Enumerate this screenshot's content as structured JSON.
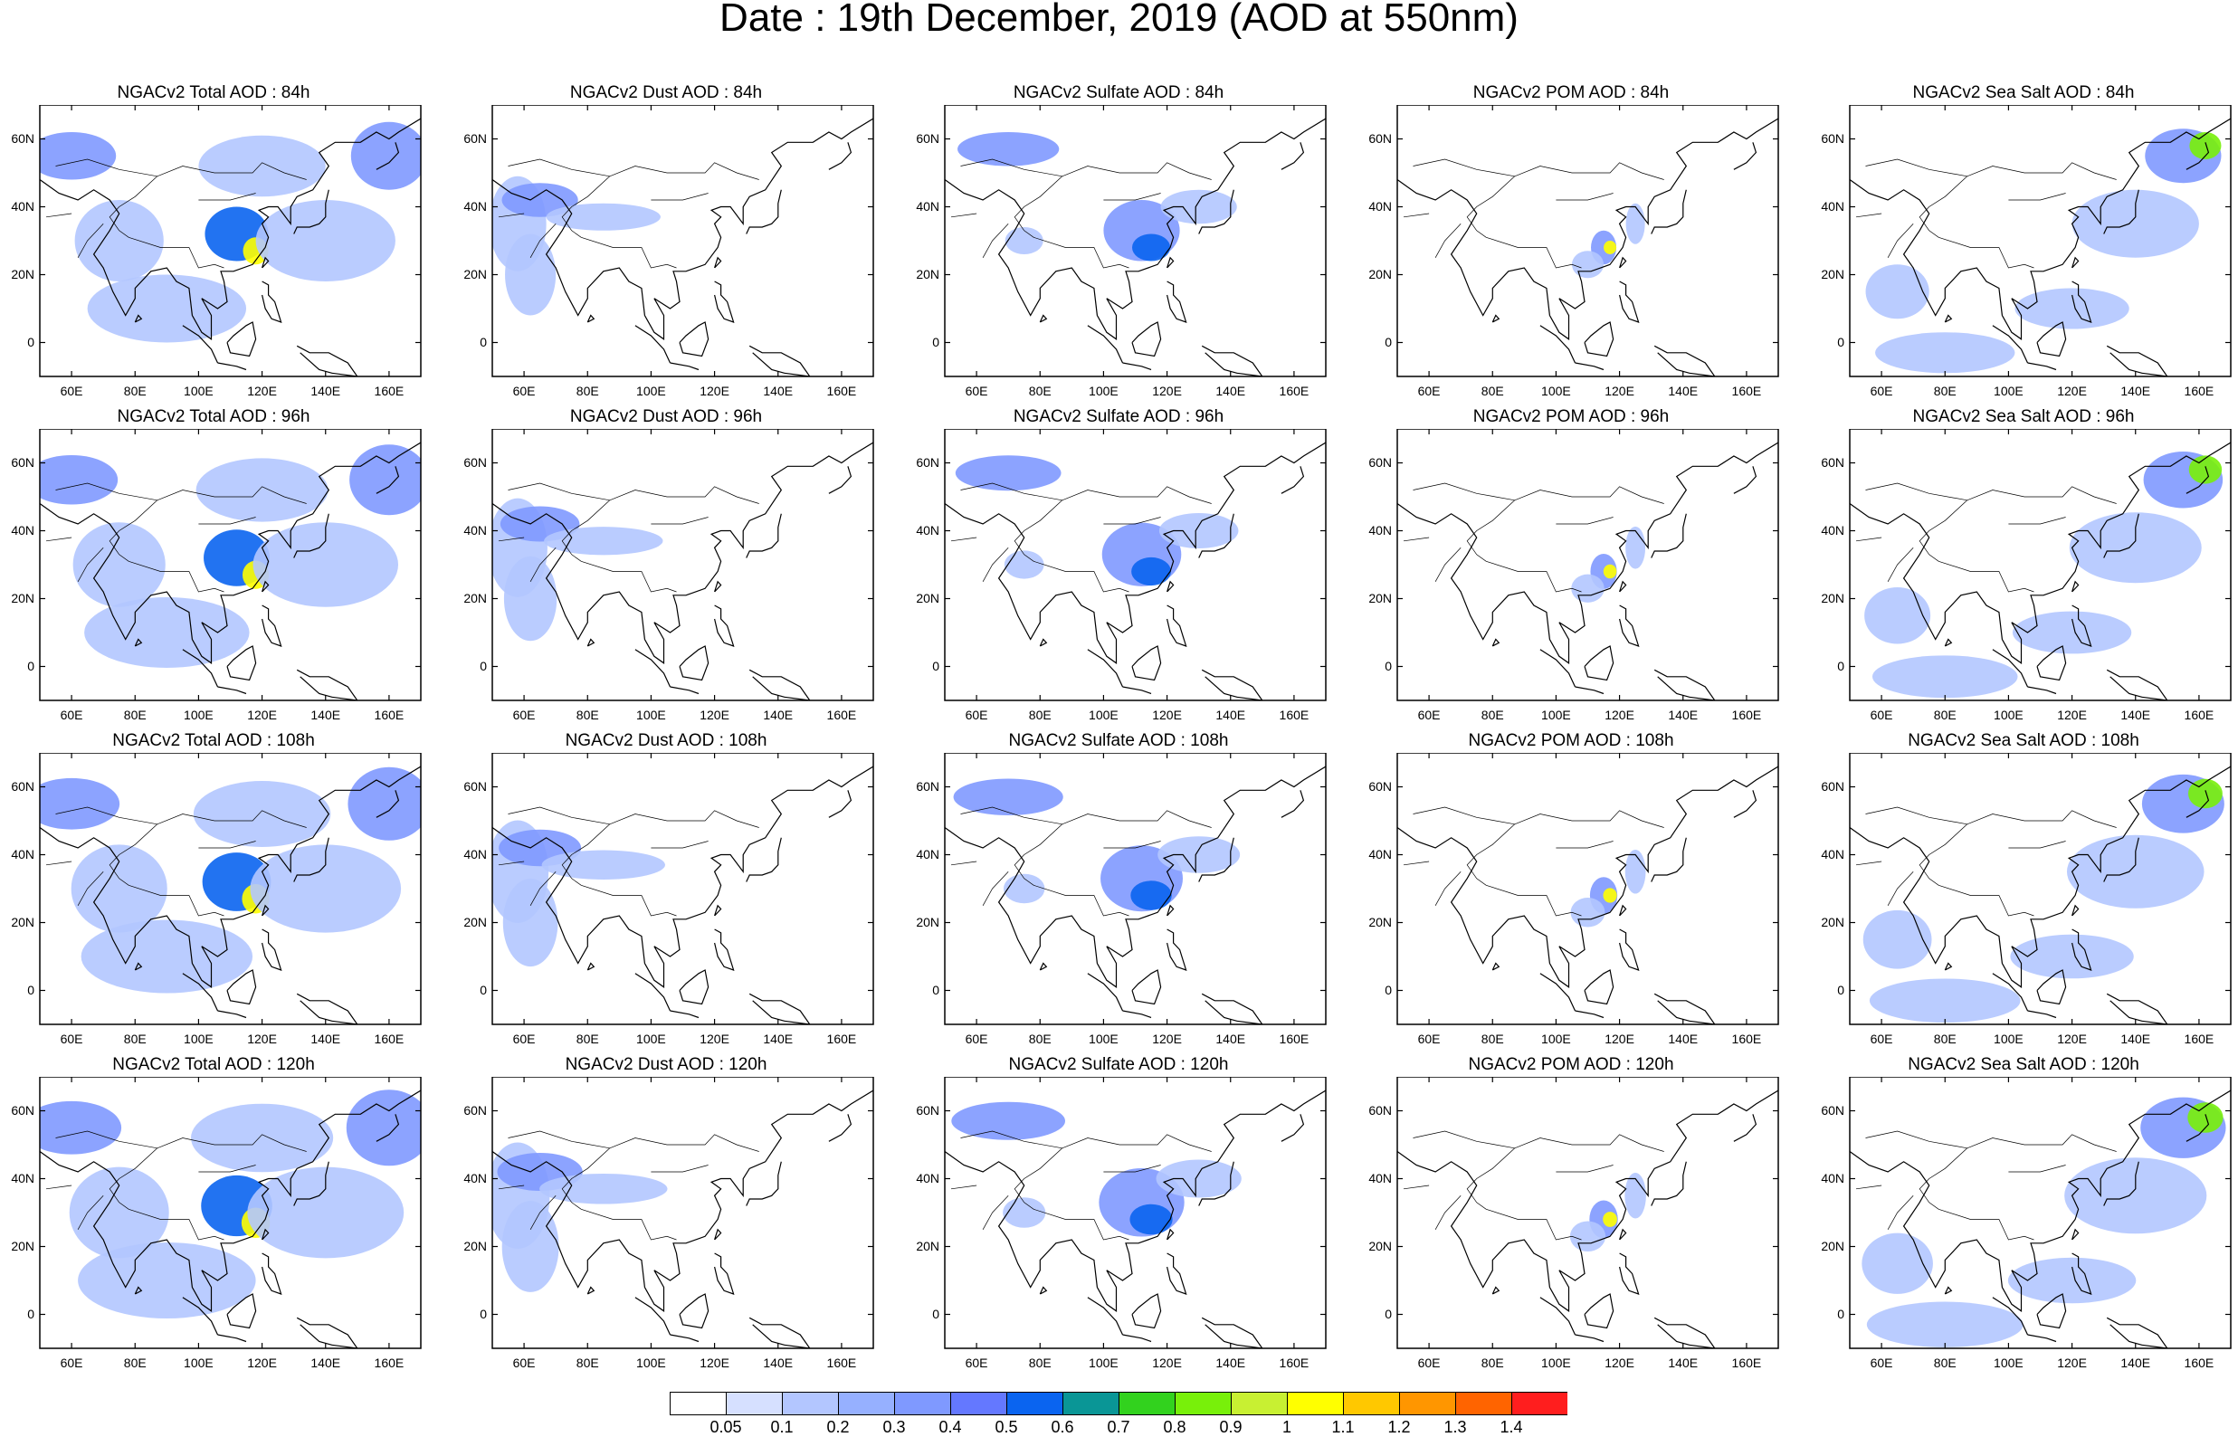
{
  "title": "Date : 19th December, 2019 (AOD at 550nm)",
  "axes": {
    "lat_ticks": [
      "60N",
      "40N",
      "20N",
      "0"
    ],
    "lat_values": [
      60,
      40,
      20,
      0
    ],
    "lon_ticks": [
      "60E",
      "80E",
      "100E",
      "120E",
      "140E",
      "160E"
    ],
    "lon_values": [
      60,
      80,
      100,
      120,
      140,
      160
    ],
    "lat_range": [
      -10,
      70
    ],
    "lon_range": [
      50,
      170
    ]
  },
  "panels": [
    [
      "NGACv2 Total AOD : 84h",
      "NGACv2 Dust AOD : 84h",
      "NGACv2 Sulfate AOD : 84h",
      "NGACv2 POM AOD : 84h",
      "NGACv2 Sea Salt AOD : 84h"
    ],
    [
      "NGACv2 Total AOD : 96h",
      "NGACv2 Dust AOD : 96h",
      "NGACv2 Sulfate AOD : 96h",
      "NGACv2 POM AOD : 96h",
      "NGACv2 Sea Salt AOD : 96h"
    ],
    [
      "NGACv2 Total AOD : 108h",
      "NGACv2 Dust AOD : 108h",
      "NGACv2 Sulfate AOD : 108h",
      "NGACv2 POM AOD : 108h",
      "NGACv2 Sea Salt AOD : 108h"
    ],
    [
      "NGACv2 Total AOD : 120h",
      "NGACv2 Dust AOD : 120h",
      "NGACv2 Sulfate AOD : 120h",
      "NGACv2 POM AOD : 120h",
      "NGACv2 Sea Salt  AOD : 120h"
    ]
  ],
  "colorbar": {
    "labels": [
      "0.05",
      "0.1",
      "0.2",
      "0.3",
      "0.4",
      "0.5",
      "0.6",
      "0.7",
      "0.8",
      "0.9",
      "1",
      "1.1",
      "1.2",
      "1.3",
      "1.4"
    ],
    "colors": [
      "#ffffff",
      "#d6e0ff",
      "#b3c6ff",
      "#96b0ff",
      "#7f99ff",
      "#6478ff",
      "#0a64f0",
      "#0a9696",
      "#32d21e",
      "#78f00a",
      "#c8f032",
      "#ffff00",
      "#ffc800",
      "#ff9600",
      "#ff6400",
      "#ff1e1e"
    ]
  }
}
